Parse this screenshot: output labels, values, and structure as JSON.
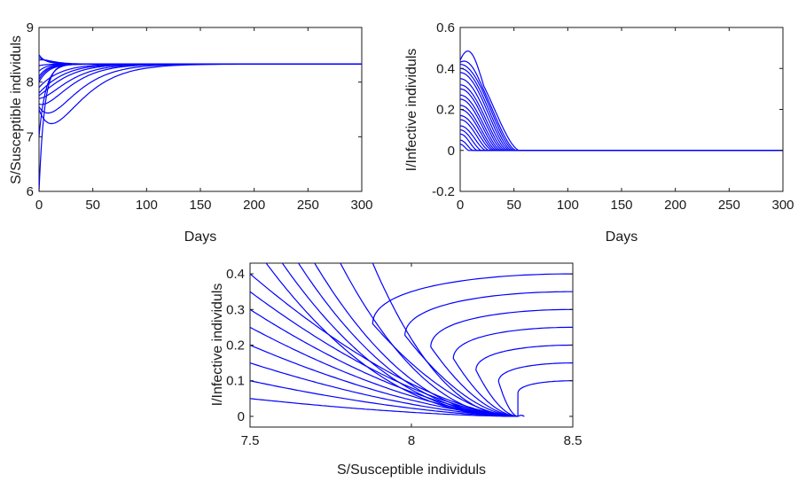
{
  "chart_data": [
    {
      "type": "line",
      "xlabel": "Days",
      "ylabel": "S/Susceptible individuls",
      "xlim": [
        0,
        300
      ],
      "ylim": [
        6,
        9
      ],
      "xticks": [
        0,
        50,
        100,
        150,
        200,
        250,
        300
      ],
      "yticks": [
        6,
        7,
        8,
        9
      ],
      "grid": false,
      "line_color": "#0000ff",
      "equilibrium": 8.33,
      "series_start_values": [
        6.0,
        7.0,
        7.5,
        7.55,
        7.6,
        7.7,
        7.75,
        7.8,
        7.9,
        8.0,
        8.05,
        8.1,
        8.2,
        8.3,
        8.4,
        8.45,
        8.5
      ],
      "series_dip_depth": [
        0.05,
        0.1,
        0.8,
        0.6,
        0.4,
        0.3,
        0.2,
        0.15,
        0.1,
        0.25,
        0.15,
        0.1,
        0.08,
        0.05,
        0.05,
        0.03,
        0.02
      ],
      "series_settle_days": [
        20,
        25,
        60,
        55,
        50,
        48,
        45,
        42,
        40,
        35,
        32,
        30,
        28,
        26,
        22,
        20,
        18
      ]
    },
    {
      "type": "line",
      "xlabel": "Days",
      "ylabel": "I/Infective individuls",
      "xlim": [
        0,
        300
      ],
      "ylim": [
        -0.2,
        0.6
      ],
      "xticks": [
        0,
        50,
        100,
        150,
        200,
        250,
        300
      ],
      "yticks": [
        -0.2,
        0,
        0.2,
        0.4,
        0.6
      ],
      "grid": false,
      "line_color": "#0000ff",
      "series_start_values": [
        0.44,
        0.43,
        0.42,
        0.4,
        0.38,
        0.35,
        0.32,
        0.3,
        0.27,
        0.25,
        0.22,
        0.2,
        0.17,
        0.15,
        0.12,
        0.1,
        0.08,
        0.05,
        0.03
      ],
      "series_peak_values": [
        0.52,
        0.45,
        0.42,
        0.4,
        0.38,
        0.35,
        0.32,
        0.3,
        0.27,
        0.25,
        0.22,
        0.2,
        0.17,
        0.15,
        0.12,
        0.1,
        0.08,
        0.05,
        0.03
      ],
      "series_extinction_days": [
        55,
        52,
        50,
        48,
        46,
        44,
        42,
        40,
        38,
        36,
        34,
        32,
        30,
        27,
        24,
        20,
        16,
        12,
        8
      ]
    },
    {
      "type": "line",
      "xlabel": "S/Susceptible individuls",
      "ylabel": "I/Infective individuls",
      "xlim": [
        7.5,
        8.5
      ],
      "ylim": [
        -0.03,
        0.43
      ],
      "xticks": [
        7.5,
        8,
        8.5
      ],
      "yticks": [
        0,
        0.1,
        0.2,
        0.3,
        0.4
      ],
      "grid": false,
      "line_color": "#0000ff",
      "equilibrium": [
        8.33,
        0
      ],
      "trajectories_left_start": [
        {
          "s": 7.5,
          "i": 0.05
        },
        {
          "s": 7.5,
          "i": 0.1
        },
        {
          "s": 7.5,
          "i": 0.15
        },
        {
          "s": 7.5,
          "i": 0.2
        },
        {
          "s": 7.5,
          "i": 0.25
        },
        {
          "s": 7.5,
          "i": 0.3
        },
        {
          "s": 7.5,
          "i": 0.35
        },
        {
          "s": 7.5,
          "i": 0.4
        }
      ],
      "trajectories_top_start": [
        {
          "s": 7.55,
          "i": 0.43
        },
        {
          "s": 7.6,
          "i": 0.43
        },
        {
          "s": 7.65,
          "i": 0.43
        },
        {
          "s": 7.7,
          "i": 0.43
        },
        {
          "s": 7.78,
          "i": 0.43
        },
        {
          "s": 7.88,
          "i": 0.43
        }
      ],
      "trajectories_right_start": [
        {
          "s": 8.5,
          "i": 0.1,
          "min_s": 8.33
        },
        {
          "s": 8.5,
          "i": 0.15,
          "min_s": 8.27
        },
        {
          "s": 8.5,
          "i": 0.2,
          "min_s": 8.2
        },
        {
          "s": 8.5,
          "i": 0.25,
          "min_s": 8.13
        },
        {
          "s": 8.5,
          "i": 0.3,
          "min_s": 8.06
        },
        {
          "s": 8.5,
          "i": 0.35,
          "min_s": 7.98
        },
        {
          "s": 8.5,
          "i": 0.4,
          "min_s": 7.88
        }
      ]
    }
  ]
}
